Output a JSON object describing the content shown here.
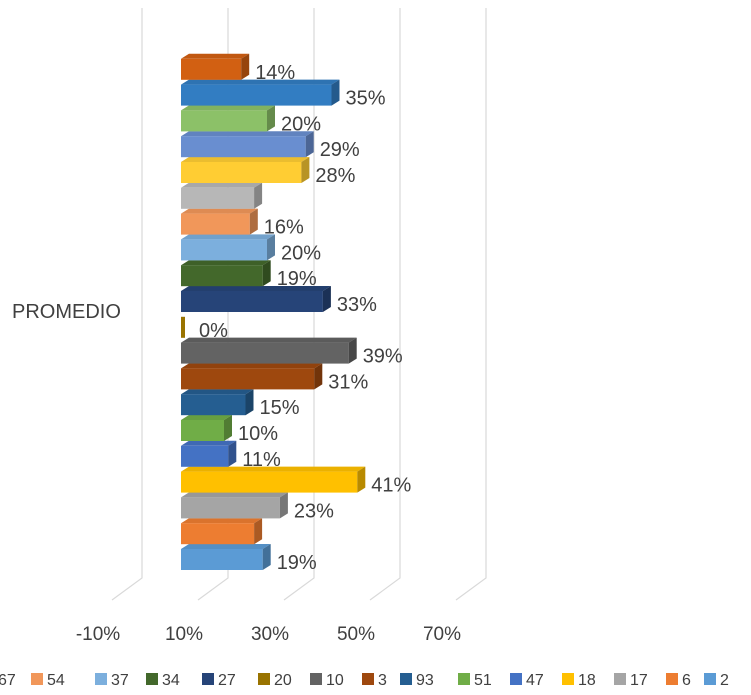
{
  "chart_data": {
    "type": "bar",
    "orientation": "horizontal",
    "style": "3d",
    "category": "PROMEDIO",
    "x_ticks": [
      "-10%",
      "10%",
      "30%",
      "50%",
      "70%"
    ],
    "xlim": [
      -0.1,
      0.7
    ],
    "grid": true,
    "legend_position": "bottom",
    "series": [
      {
        "name": "2",
        "value": 0.19,
        "label": "19%",
        "color": "#5b9bd5"
      },
      {
        "name": "6",
        "value": 0.17,
        "label": "",
        "color": "#ed7d31"
      },
      {
        "name": "17",
        "value": 0.23,
        "label": "23%",
        "color": "#a5a5a5"
      },
      {
        "name": "18",
        "value": 0.41,
        "label": "41%",
        "color": "#ffc000"
      },
      {
        "name": "47",
        "value": 0.11,
        "label": "11%",
        "color": "#4472c4"
      },
      {
        "name": "51",
        "value": 0.1,
        "label": "10%",
        "color": "#70ad47"
      },
      {
        "name": "93",
        "value": 0.15,
        "label": "15%",
        "color": "#255e91"
      },
      {
        "name": "3",
        "value": 0.31,
        "label": "31%",
        "color": "#9e480e"
      },
      {
        "name": "10",
        "value": 0.39,
        "label": "39%",
        "color": "#636363"
      },
      {
        "name": "20",
        "value": 0.0,
        "label": "0%",
        "color": "#997300"
      },
      {
        "name": "27",
        "value": 0.33,
        "label": "33%",
        "color": "#264478"
      },
      {
        "name": "34",
        "value": 0.19,
        "label": "19%",
        "color": "#43682b"
      },
      {
        "name": "37",
        "value": 0.2,
        "label": "20%",
        "color": "#7cafdd"
      },
      {
        "name": "54",
        "value": 0.16,
        "label": "16%",
        "color": "#f1975a"
      },
      {
        "name": "67",
        "value": 0.17,
        "label": "",
        "color": "#b7b7b7"
      },
      {
        "name": "",
        "value": 0.28,
        "label": "28%",
        "color": "#ffcd33"
      },
      {
        "name": "",
        "value": 0.29,
        "label": "29%",
        "color": "#698ed0"
      },
      {
        "name": "",
        "value": 0.2,
        "label": "20%",
        "color": "#8cc168"
      },
      {
        "name": "",
        "value": 0.35,
        "label": "35%",
        "color": "#327dc2"
      },
      {
        "name": "",
        "value": 0.14,
        "label": "14%",
        "color": "#d26012"
      }
    ]
  }
}
